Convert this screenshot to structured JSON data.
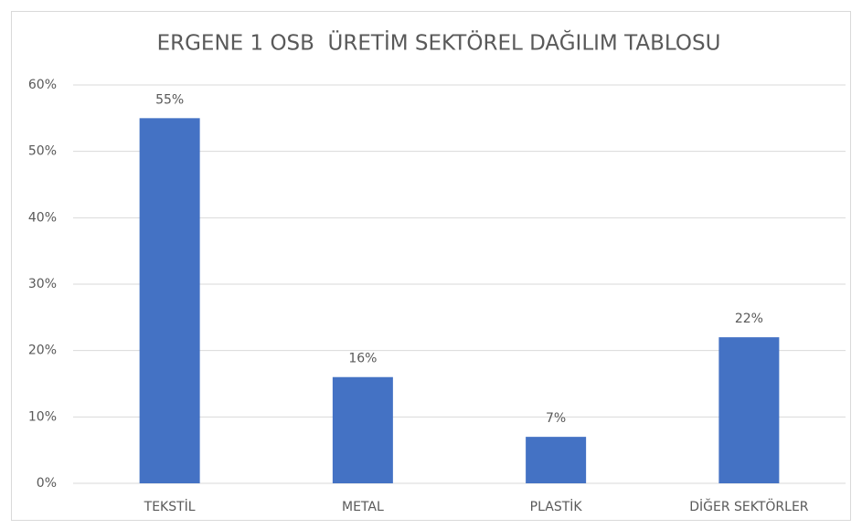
{
  "chart_data": {
    "type": "bar",
    "title": "ERGENE 1 OSB  ÜRETİM SEKTÖREL DAĞILIM TABLOSU",
    "categories": [
      "TEKSTİL",
      "METAL",
      "PLASTİK",
      "DİĞER SEKTÖRLER"
    ],
    "values": [
      55,
      16,
      7,
      22
    ],
    "value_labels": [
      "55%",
      "16%",
      "7%",
      "22%"
    ],
    "color": "#4472c4",
    "ylim": [
      0,
      60
    ],
    "yticks": [
      {
        "value": 0,
        "label": "0%"
      },
      {
        "value": 10,
        "label": "10%"
      },
      {
        "value": 20,
        "label": "20%"
      },
      {
        "value": 30,
        "label": "30%"
      },
      {
        "value": 40,
        "label": "40%"
      },
      {
        "value": 50,
        "label": "50%"
      },
      {
        "value": 60,
        "label": "60%"
      }
    ],
    "grid": true
  }
}
